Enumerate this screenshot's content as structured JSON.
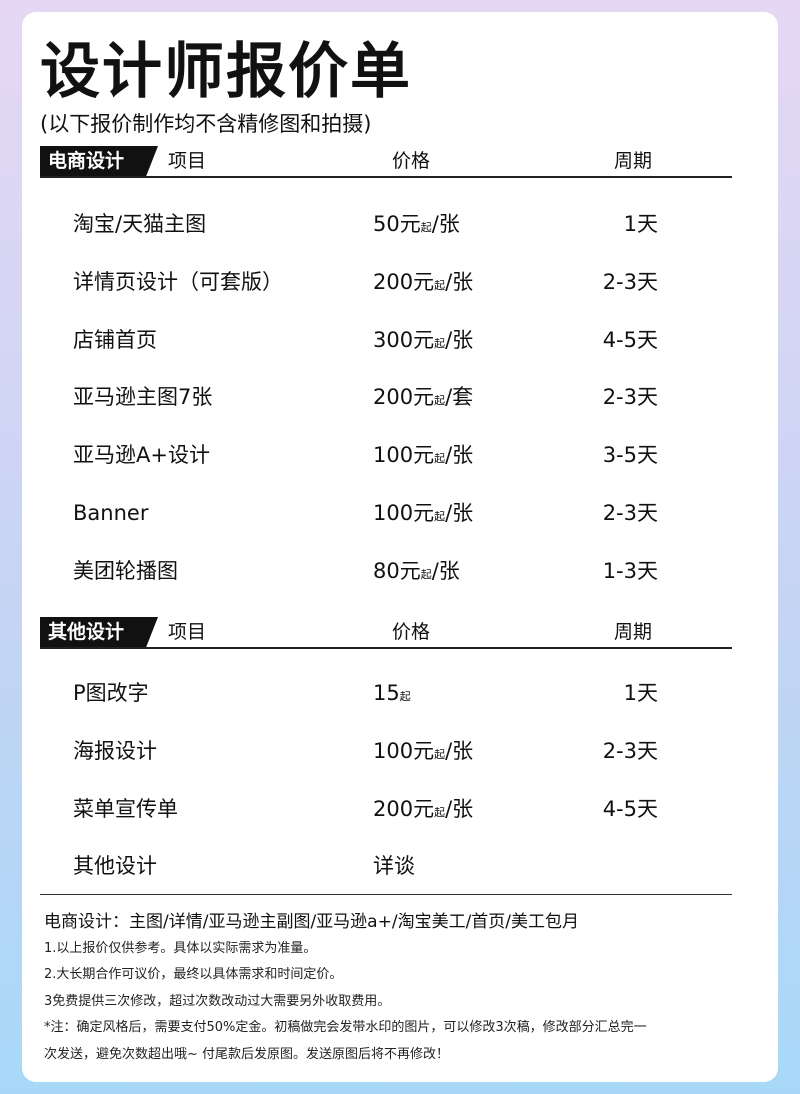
{
  "title": "设计师报价单",
  "subtitle": "(以下报价制作均不含精修图和拍摄)",
  "columns": {
    "item": "项目",
    "price": "价格",
    "period": "周期"
  },
  "sections": [
    {
      "tag": "电商设计",
      "rows": [
        {
          "item": "淘宝/天猫主图",
          "amount": "50元",
          "qualifier": "起",
          "unit": "/张",
          "period": "1天"
        },
        {
          "item": "详情页设计（可套版）",
          "amount": "200元",
          "qualifier": "起",
          "unit": "/张",
          "period": "2-3天"
        },
        {
          "item": "店铺首页",
          "amount": "300元",
          "qualifier": "起",
          "unit": "/张",
          "period": "4-5天"
        },
        {
          "item": "亚马逊主图7张",
          "amount": "200元",
          "qualifier": "起",
          "unit": "/套",
          "period": "2-3天"
        },
        {
          "item": "亚马逊A+设计",
          "amount": "100元",
          "qualifier": "起",
          "unit": "/张",
          "period": "3-5天"
        },
        {
          "item": "Banner",
          "amount": "100元",
          "qualifier": "起",
          "unit": "/张",
          "period": "2-3天"
        },
        {
          "item": "美团轮播图",
          "amount": "80元",
          "qualifier": "起",
          "unit": "/张",
          "period": "1-3天"
        }
      ]
    },
    {
      "tag": "其他设计",
      "rows": [
        {
          "item": "P图改字",
          "amount": "15",
          "qualifier": "起",
          "unit": "",
          "period": "1天"
        },
        {
          "item": "海报设计",
          "amount": "100元",
          "qualifier": "起",
          "unit": "/张",
          "period": "2-3天"
        },
        {
          "item": "菜单宣传单",
          "amount": "200元",
          "qualifier": "起",
          "unit": "/张",
          "period": "4-5天"
        },
        {
          "item": "其他设计",
          "amount": "详谈",
          "qualifier": "",
          "unit": "",
          "period": ""
        }
      ]
    }
  ],
  "footer": {
    "services": "电商设计：主图/详情/亚马逊主副图/亚马逊a+/淘宝美工/首页/美工包月",
    "notes": [
      "1.以上报价仅供参考。具体以实际需求为准量。",
      "2.大长期合作可议价，最终以具体需求和时间定价。",
      "3免费提供三次修改，超过次数改动过大需要另外收取费用。",
      "*注：确定风格后，需要支付50%定金。初稿做完会发带水印的图片，可以修改3次稿，修改部分汇总完一",
      "次发送，避免次数超出哦~ 付尾款后发原图。发送原图后将不再修改！"
    ]
  }
}
